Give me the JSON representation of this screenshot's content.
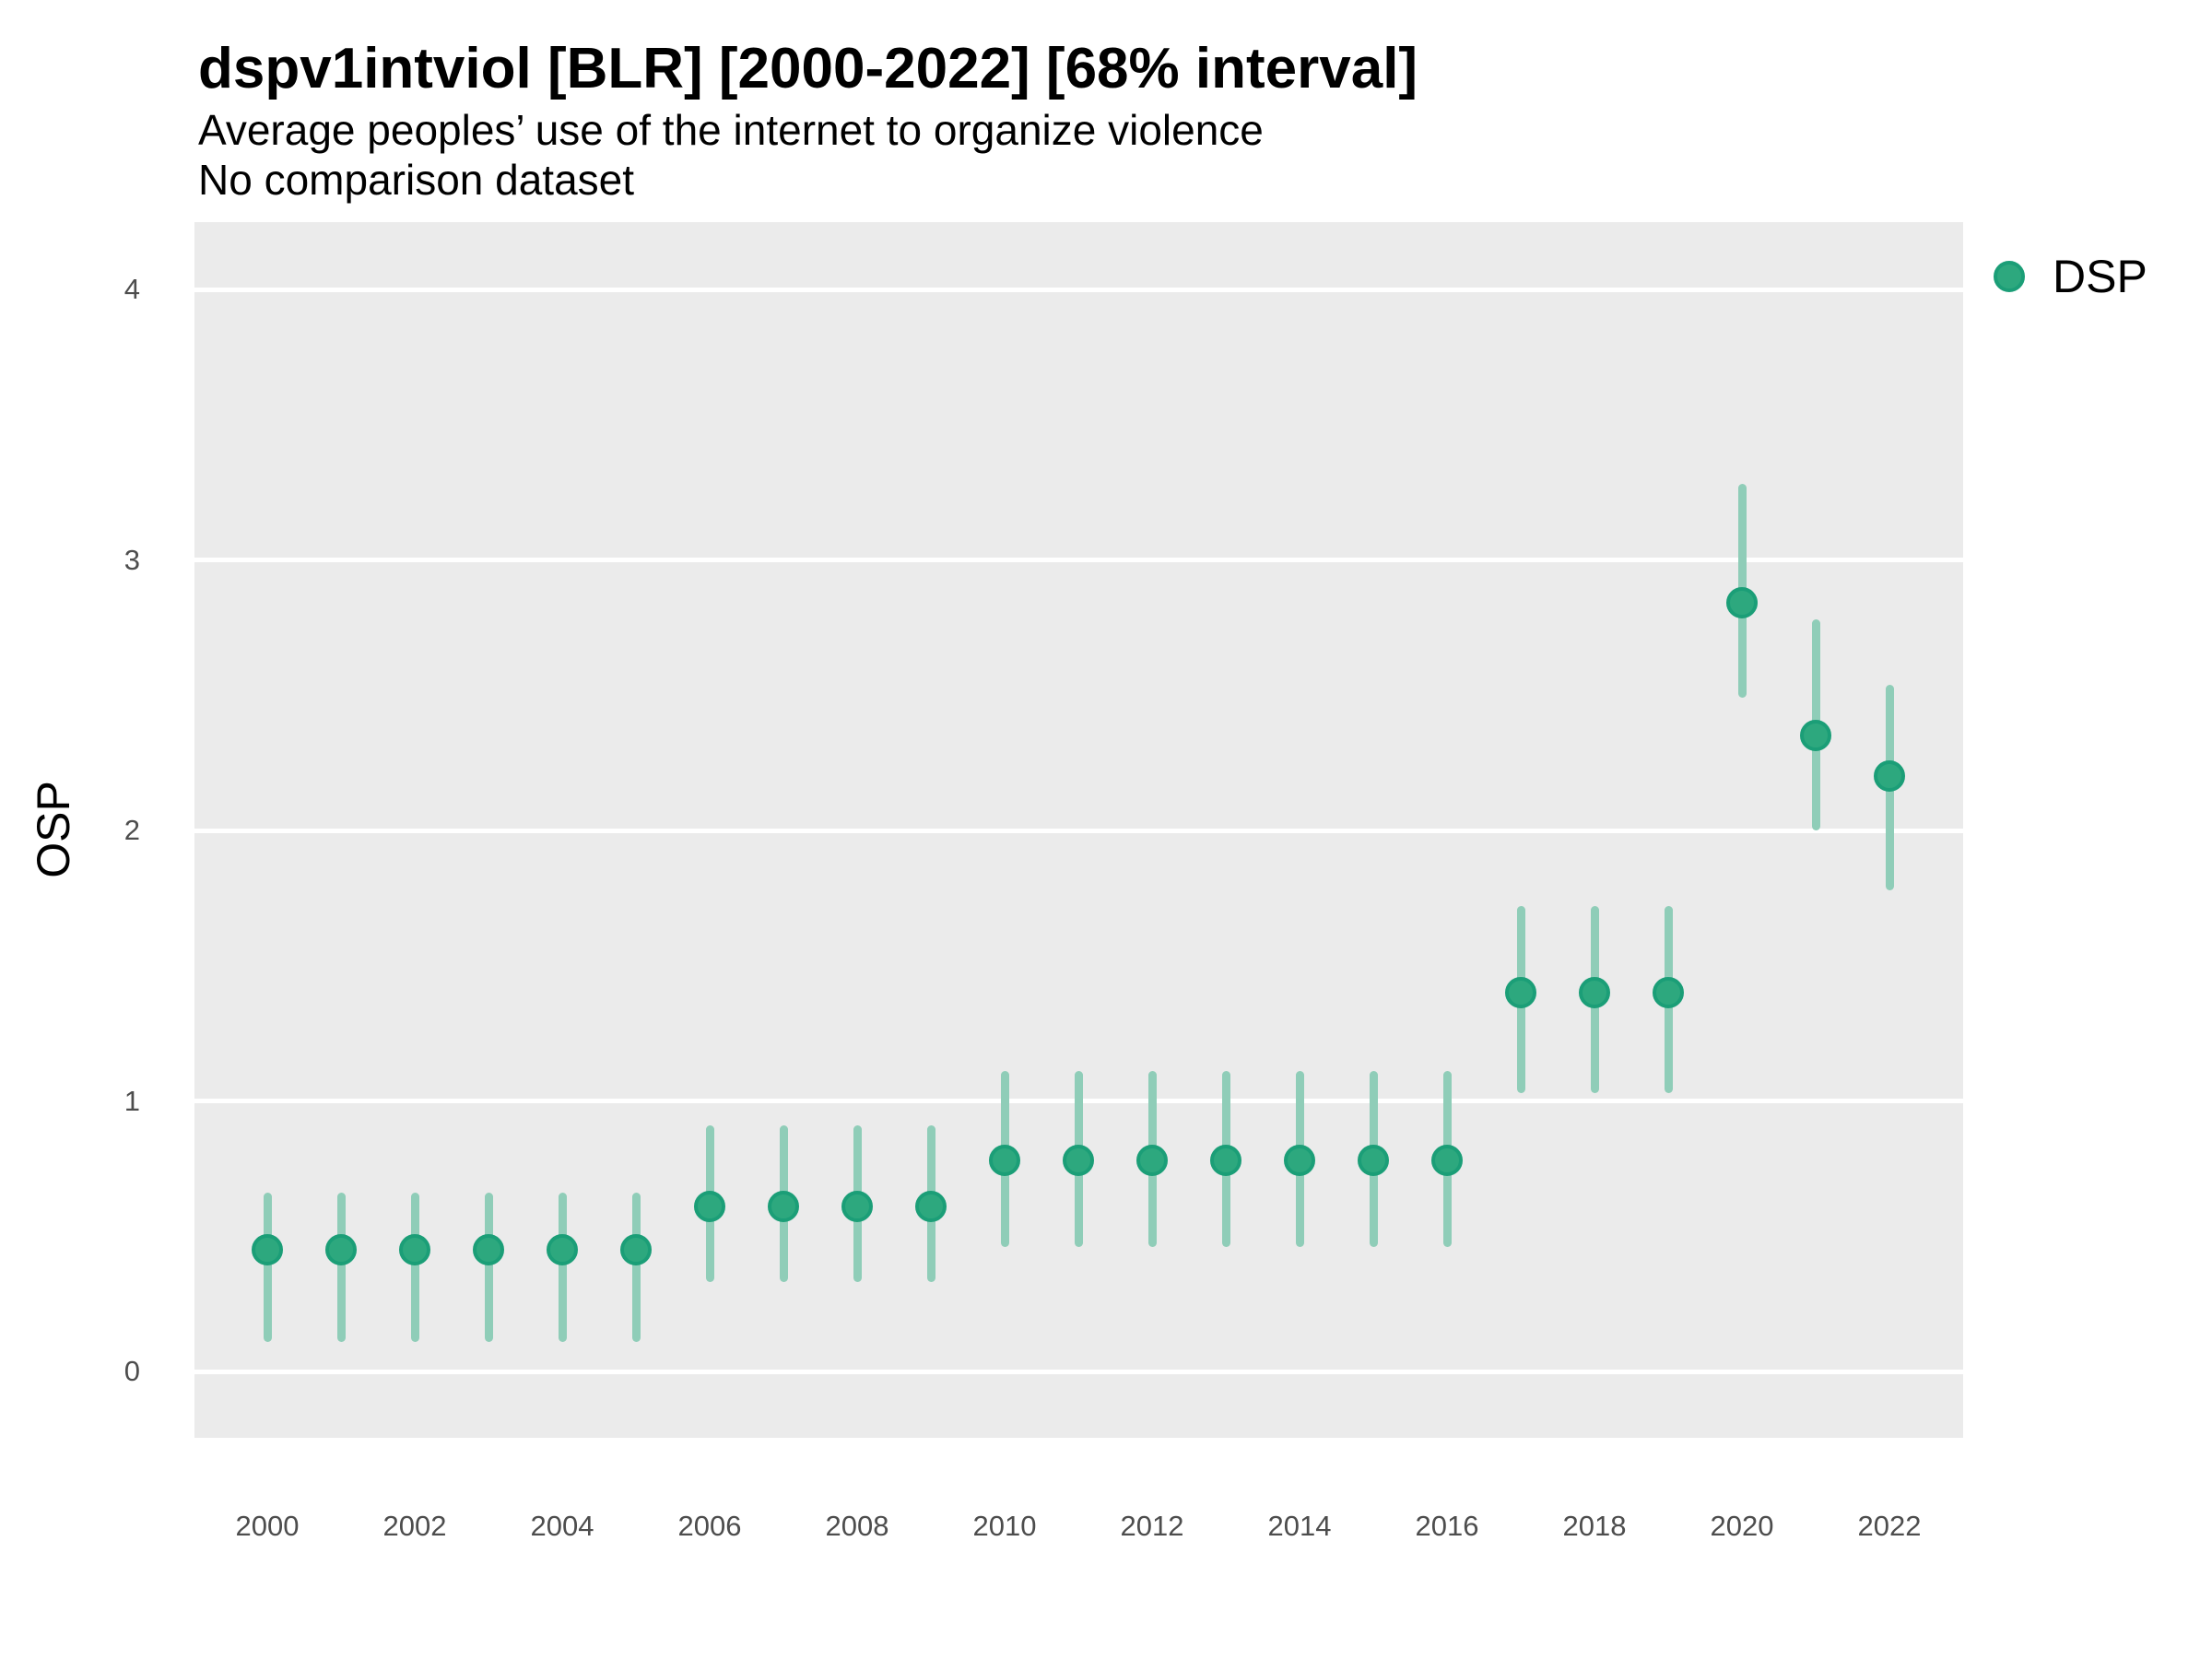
{
  "title": "dspv1intviol [BLR] [2000-2022] [68% interval]",
  "subtitle": "Average peoples’ use of the internet to organize violence",
  "subtitle2": "No comparison dataset",
  "legend": {
    "label": "DSP"
  },
  "axes": {
    "y_title": "OSP",
    "y_ticks": [
      0,
      1,
      2,
      3,
      4
    ],
    "x_ticks": [
      2000,
      2002,
      2004,
      2006,
      2008,
      2010,
      2012,
      2014,
      2016,
      2018,
      2020,
      2022
    ]
  },
  "colors": {
    "panel_bg": "#EBEBEB",
    "gridline": "#FFFFFF",
    "point_fill": "#2DA87E",
    "point_stroke": "#1B9E77",
    "interval_line": "#8FCDB8",
    "tick_label": "#4D4D4D",
    "text": "#000000"
  },
  "chart_data": {
    "type": "pointrange",
    "title": "dspv1intviol [BLR] [2000-2022] [68% interval]",
    "subtitle": "Average peoples’ use of the internet to organize violence",
    "note": "No comparison dataset",
    "xlabel": "",
    "ylabel": "OSP",
    "ylim": [
      -0.25,
      4.25
    ],
    "x_range": [
      2000,
      2022
    ],
    "interval_level": "68%",
    "legend_position": "right",
    "grid": "horizontal major gridlines, white on gray panel",
    "series": [
      {
        "name": "DSP",
        "points": [
          {
            "year": 2000,
            "mid": 0.45,
            "low": 0.11,
            "high": 0.66
          },
          {
            "year": 2001,
            "mid": 0.45,
            "low": 0.11,
            "high": 0.66
          },
          {
            "year": 2002,
            "mid": 0.45,
            "low": 0.11,
            "high": 0.66
          },
          {
            "year": 2003,
            "mid": 0.45,
            "low": 0.11,
            "high": 0.66
          },
          {
            "year": 2004,
            "mid": 0.45,
            "low": 0.11,
            "high": 0.66
          },
          {
            "year": 2005,
            "mid": 0.45,
            "low": 0.11,
            "high": 0.66
          },
          {
            "year": 2006,
            "mid": 0.61,
            "low": 0.33,
            "high": 0.91
          },
          {
            "year": 2007,
            "mid": 0.61,
            "low": 0.33,
            "high": 0.91
          },
          {
            "year": 2008,
            "mid": 0.61,
            "low": 0.33,
            "high": 0.91
          },
          {
            "year": 2009,
            "mid": 0.61,
            "low": 0.33,
            "high": 0.91
          },
          {
            "year": 2010,
            "mid": 0.78,
            "low": 0.46,
            "high": 1.11
          },
          {
            "year": 2011,
            "mid": 0.78,
            "low": 0.46,
            "high": 1.11
          },
          {
            "year": 2012,
            "mid": 0.78,
            "low": 0.46,
            "high": 1.11
          },
          {
            "year": 2013,
            "mid": 0.78,
            "low": 0.46,
            "high": 1.11
          },
          {
            "year": 2014,
            "mid": 0.78,
            "low": 0.46,
            "high": 1.11
          },
          {
            "year": 2015,
            "mid": 0.78,
            "low": 0.46,
            "high": 1.11
          },
          {
            "year": 2016,
            "mid": 0.78,
            "low": 0.46,
            "high": 1.11
          },
          {
            "year": 2017,
            "mid": 1.4,
            "low": 1.03,
            "high": 1.72
          },
          {
            "year": 2018,
            "mid": 1.4,
            "low": 1.03,
            "high": 1.72
          },
          {
            "year": 2019,
            "mid": 1.4,
            "low": 1.03,
            "high": 1.72
          },
          {
            "year": 2020,
            "mid": 2.84,
            "low": 2.49,
            "high": 3.28
          },
          {
            "year": 2021,
            "mid": 2.35,
            "low": 2.0,
            "high": 2.78
          },
          {
            "year": 2022,
            "mid": 2.2,
            "low": 1.78,
            "high": 2.54
          }
        ]
      }
    ]
  }
}
